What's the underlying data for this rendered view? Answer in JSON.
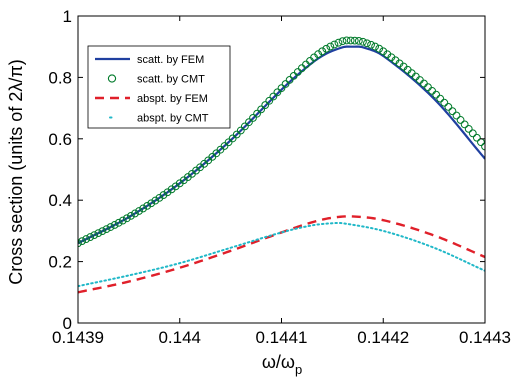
{
  "chart_data": {
    "type": "line",
    "xlabel": "ω/ω",
    "xlabel_sub": "p",
    "ylabel": "Cross section (units of 2λ/π)",
    "xlim": [
      0.1439,
      0.1443
    ],
    "ylim": [
      0,
      1
    ],
    "xticks": [
      0.1439,
      0.144,
      0.1441,
      0.1442,
      0.1443
    ],
    "xtick_labels": [
      "0.1439",
      "0.144",
      "0.1441",
      "0.1442",
      "0.1443"
    ],
    "yticks": [
      0,
      0.2,
      0.4,
      0.6,
      0.8,
      1
    ],
    "ytick_labels": [
      "0",
      "0.2",
      "0.4",
      "0.6",
      "0.8",
      "1"
    ],
    "grid": false,
    "legend_position": "top-left",
    "series": [
      {
        "name": "scatt. by FEM",
        "style": "solid",
        "color": "#2040a0",
        "x": [
          0.1439,
          0.14395,
          0.144,
          0.14405,
          0.1441,
          0.14412,
          0.14414,
          0.14416,
          0.14417,
          0.14418,
          0.1442,
          0.14425,
          0.1443
        ],
        "y": [
          0.26,
          0.345,
          0.455,
          0.595,
          0.76,
          0.82,
          0.87,
          0.898,
          0.9,
          0.898,
          0.87,
          0.73,
          0.535
        ]
      },
      {
        "name": "scatt. by CMT",
        "style": "circle",
        "color": "#007a2a",
        "x": [
          0.1439,
          0.14395,
          0.144,
          0.14405,
          0.1441,
          0.14412,
          0.14414,
          0.14416,
          0.14417,
          0.14418,
          0.1442,
          0.14425,
          0.1443
        ],
        "y": [
          0.26,
          0.345,
          0.455,
          0.595,
          0.765,
          0.83,
          0.885,
          0.918,
          0.92,
          0.916,
          0.885,
          0.75,
          0.575
        ]
      },
      {
        "name": "abspt. by FEM",
        "style": "dashed",
        "color": "#e0202a",
        "x": [
          0.1439,
          0.14395,
          0.144,
          0.14405,
          0.1441,
          0.14413,
          0.14415,
          0.14417,
          0.1442,
          0.14425,
          0.1443
        ],
        "y": [
          0.1,
          0.135,
          0.18,
          0.235,
          0.295,
          0.328,
          0.343,
          0.347,
          0.335,
          0.285,
          0.215
        ]
      },
      {
        "name": "abspt. by CMT",
        "style": "dotted",
        "color": "#20b8c8",
        "x": [
          0.1439,
          0.14395,
          0.144,
          0.14405,
          0.1441,
          0.14413,
          0.14415,
          0.14416,
          0.1442,
          0.14425,
          0.1443
        ],
        "y": [
          0.12,
          0.155,
          0.195,
          0.245,
          0.295,
          0.318,
          0.325,
          0.325,
          0.3,
          0.245,
          0.17
        ]
      }
    ]
  }
}
